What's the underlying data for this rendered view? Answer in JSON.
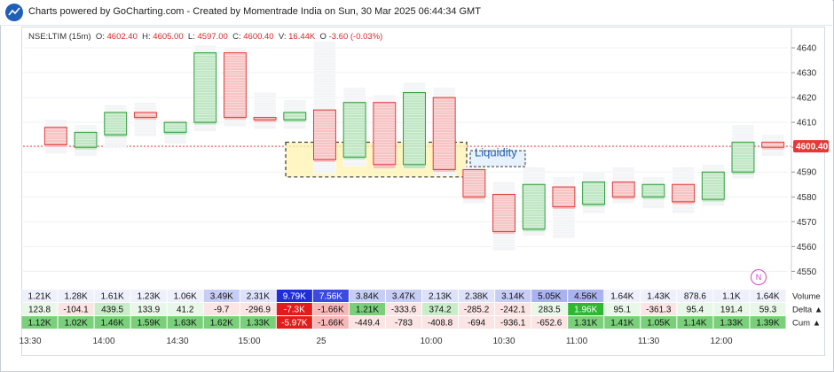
{
  "header": {
    "title": "Charts powered by GoCharting.com - Created by Momentrade India on Sun, 30 Mar 2025 06:44:34 GMT"
  },
  "ohlc": {
    "symbol": "NSE:LTIM (15m)",
    "o_label": "O:",
    "o": "4602.40",
    "h_label": "H:",
    "h": "4605.00",
    "l_label": "L:",
    "l": "4597.00",
    "c_label": "C:",
    "c": "4600.40",
    "v_label": "V:",
    "v": "16.44K",
    "chg_label": "O",
    "chg": "-3.60 (-0.03%)"
  },
  "colors": {
    "up": "#2e9e3a",
    "down": "#e03c3c",
    "highlight": "#fff3b0",
    "price_tag": "#e53935"
  },
  "annotation": {
    "text": "Liquidity"
  },
  "price_axis": {
    "ticks": [
      4640,
      4630,
      4620,
      4610,
      4600,
      4590,
      4580,
      4570,
      4560,
      4550
    ],
    "current_price": "4600.40"
  },
  "time_axis": {
    "labels": [
      "13:30",
      "14:00",
      "14:30",
      "15:00",
      "25",
      "10:00",
      "10:30",
      "11:00",
      "11:30",
      "12:00"
    ]
  },
  "rows": {
    "volume_label": "Volume",
    "delta_label": "Delta ▲",
    "cum_label": "Cum ▲"
  },
  "chart_data": {
    "type": "footprint",
    "ylim": [
      4548,
      4645
    ],
    "candles": [
      {
        "o": 4608,
        "h": 4611,
        "l": 4598,
        "c": 4601
      },
      {
        "o": 4600,
        "h": 4609,
        "l": 4597,
        "c": 4606
      },
      {
        "o": 4605,
        "h": 4617,
        "l": 4601,
        "c": 4614
      },
      {
        "o": 4614,
        "h": 4618,
        "l": 4605,
        "c": 4612
      },
      {
        "o": 4606,
        "h": 4611,
        "l": 4602,
        "c": 4610
      },
      {
        "o": 4610,
        "h": 4641,
        "l": 4607,
        "c": 4638
      },
      {
        "o": 4638,
        "h": 4640,
        "l": 4609,
        "c": 4612
      },
      {
        "o": 4612,
        "h": 4622,
        "l": 4608,
        "c": 4611
      },
      {
        "o": 4611,
        "h": 4619,
        "l": 4608,
        "c": 4614
      },
      {
        "o": 4615,
        "h": 4645,
        "l": 4590,
        "c": 4595
      },
      {
        "o": 4596,
        "h": 4624,
        "l": 4593,
        "c": 4618
      },
      {
        "o": 4618,
        "h": 4621,
        "l": 4592,
        "c": 4593
      },
      {
        "o": 4593,
        "h": 4626,
        "l": 4592,
        "c": 4622
      },
      {
        "o": 4620,
        "h": 4624,
        "l": 4589,
        "c": 4591
      },
      {
        "o": 4591,
        "h": 4592,
        "l": 4578,
        "c": 4580
      },
      {
        "o": 4581,
        "h": 4586,
        "l": 4559,
        "c": 4566
      },
      {
        "o": 4567,
        "h": 4592,
        "l": 4565,
        "c": 4585
      },
      {
        "o": 4584,
        "h": 4588,
        "l": 4564,
        "c": 4576
      },
      {
        "o": 4577,
        "h": 4590,
        "l": 4574,
        "c": 4586
      },
      {
        "o": 4586,
        "h": 4592,
        "l": 4578,
        "c": 4580
      },
      {
        "o": 4580,
        "h": 4588,
        "l": 4576,
        "c": 4585
      },
      {
        "o": 4585,
        "h": 4592,
        "l": 4574,
        "c": 4578
      },
      {
        "o": 4579,
        "h": 4593,
        "l": 4577,
        "c": 4590
      },
      {
        "o": 4590,
        "h": 4609,
        "l": 4588,
        "c": 4602
      },
      {
        "o": 4602,
        "h": 4605,
        "l": 4597,
        "c": 4600
      }
    ],
    "volume": [
      "1.21K",
      "1.28K",
      "1.61K",
      "1.23K",
      "1.06K",
      "3.49K",
      "2.31K",
      "9.79K",
      "7.56K",
      "3.84K",
      "3.47K",
      "2.13K",
      "2.38K",
      "3.14K",
      "5.05K",
      "4.56K",
      "1.64K",
      "1.43K",
      "878.6",
      "1.1K",
      "1.64K"
    ],
    "delta": [
      "123.8",
      "-104.1",
      "439.5",
      "133.9",
      "41.2",
      "-9.7",
      "-296.9",
      "-7.3K",
      "-1.66K",
      "1.21K",
      "-333.6",
      "374.2",
      "-285.2",
      "-242.1",
      "283.5",
      "1.96K",
      "95.1",
      "-361.3",
      "95.4",
      "191.4",
      "59.3"
    ],
    "cum": [
      "1.12K",
      "1.02K",
      "1.46K",
      "1.59K",
      "1.63K",
      "1.62K",
      "1.33K",
      "-5.97K",
      "-1.66K",
      "-449.4",
      "-783",
      "-408.8",
      "-694",
      "-936.1",
      "-652.6",
      "1.31K",
      "1.41K",
      "1.05K",
      "1.14K",
      "1.33K",
      "1.39K"
    ]
  }
}
